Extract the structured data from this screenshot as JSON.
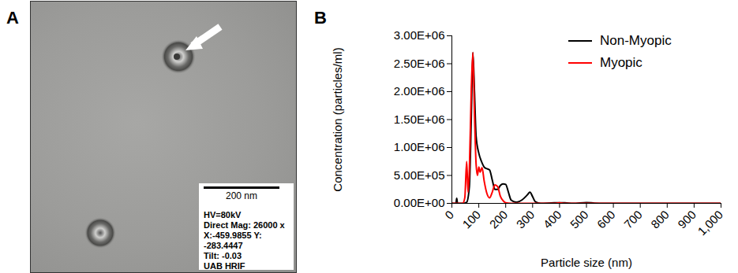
{
  "micrograph": {
    "panel_label": "A",
    "scale_bar": "200 nm",
    "info": [
      "HV=80kV",
      "Direct Mag: 26000 x",
      "X:-459.9855 Y: -283.4447",
      "Tilt: -0.03",
      "UAB HRIF"
    ]
  },
  "chart_data": {
    "type": "line",
    "annotations": [
      "B"
    ],
    "xlabel": "Particle size (nm)",
    "ylabel": "Concentration (particles/ml)",
    "xlim": [
      0,
      1000
    ],
    "ylim": [
      0,
      3000000
    ],
    "xticks": [
      0,
      100,
      200,
      300,
      400,
      500,
      600,
      700,
      800,
      900,
      {
        "value": 1000,
        "label": "1,000"
      }
    ],
    "yticks": [
      {
        "value": 0,
        "label": "0.00E+00"
      },
      {
        "value": 500000,
        "label": "5.00E+05"
      },
      {
        "value": 1000000,
        "label": "1.00E+06"
      },
      {
        "value": 1500000,
        "label": "1.50E+06"
      },
      {
        "value": 2000000,
        "label": "2.00E+06"
      },
      {
        "value": 2500000,
        "label": "2.50E+06"
      },
      {
        "value": 3000000,
        "label": "3.00E+06"
      }
    ],
    "legend": "upper right",
    "series": [
      {
        "name": "Non-Myopic",
        "color": "#000000",
        "x": [
          0,
          10,
          15,
          18,
          21,
          40,
          55,
          65,
          72,
          78,
          84,
          90,
          100,
          110,
          120,
          130,
          140,
          150,
          160,
          170,
          180,
          190,
          200,
          210,
          220,
          240,
          260,
          280,
          290,
          300,
          310,
          330,
          380,
          420,
          450,
          500,
          530,
          560,
          1000
        ],
        "values": [
          0,
          0,
          0,
          90000,
          0,
          0,
          20000,
          300000,
          1500000,
          2700000,
          2000000,
          1200000,
          900000,
          750000,
          650000,
          620000,
          600000,
          420000,
          250000,
          250000,
          320000,
          350000,
          340000,
          200000,
          60000,
          20000,
          60000,
          150000,
          200000,
          120000,
          30000,
          0,
          10000,
          10000,
          0,
          15000,
          5000,
          0,
          0
        ]
      },
      {
        "name": "Myopic",
        "color": "#ff0000",
        "x": [
          0,
          40,
          48,
          55,
          60,
          65,
          72,
          78,
          84,
          90,
          95,
          100,
          105,
          112,
          120,
          130,
          140,
          150,
          160,
          170,
          180,
          190,
          200,
          220,
          380,
          400,
          420,
          1000
        ],
        "values": [
          0,
          0,
          100000,
          750000,
          200000,
          600000,
          2000000,
          2700000,
          1600000,
          700000,
          500000,
          650000,
          560000,
          640000,
          400000,
          180000,
          100000,
          200000,
          330000,
          300000,
          130000,
          50000,
          10000,
          0,
          0,
          10000,
          0,
          0
        ]
      }
    ]
  }
}
